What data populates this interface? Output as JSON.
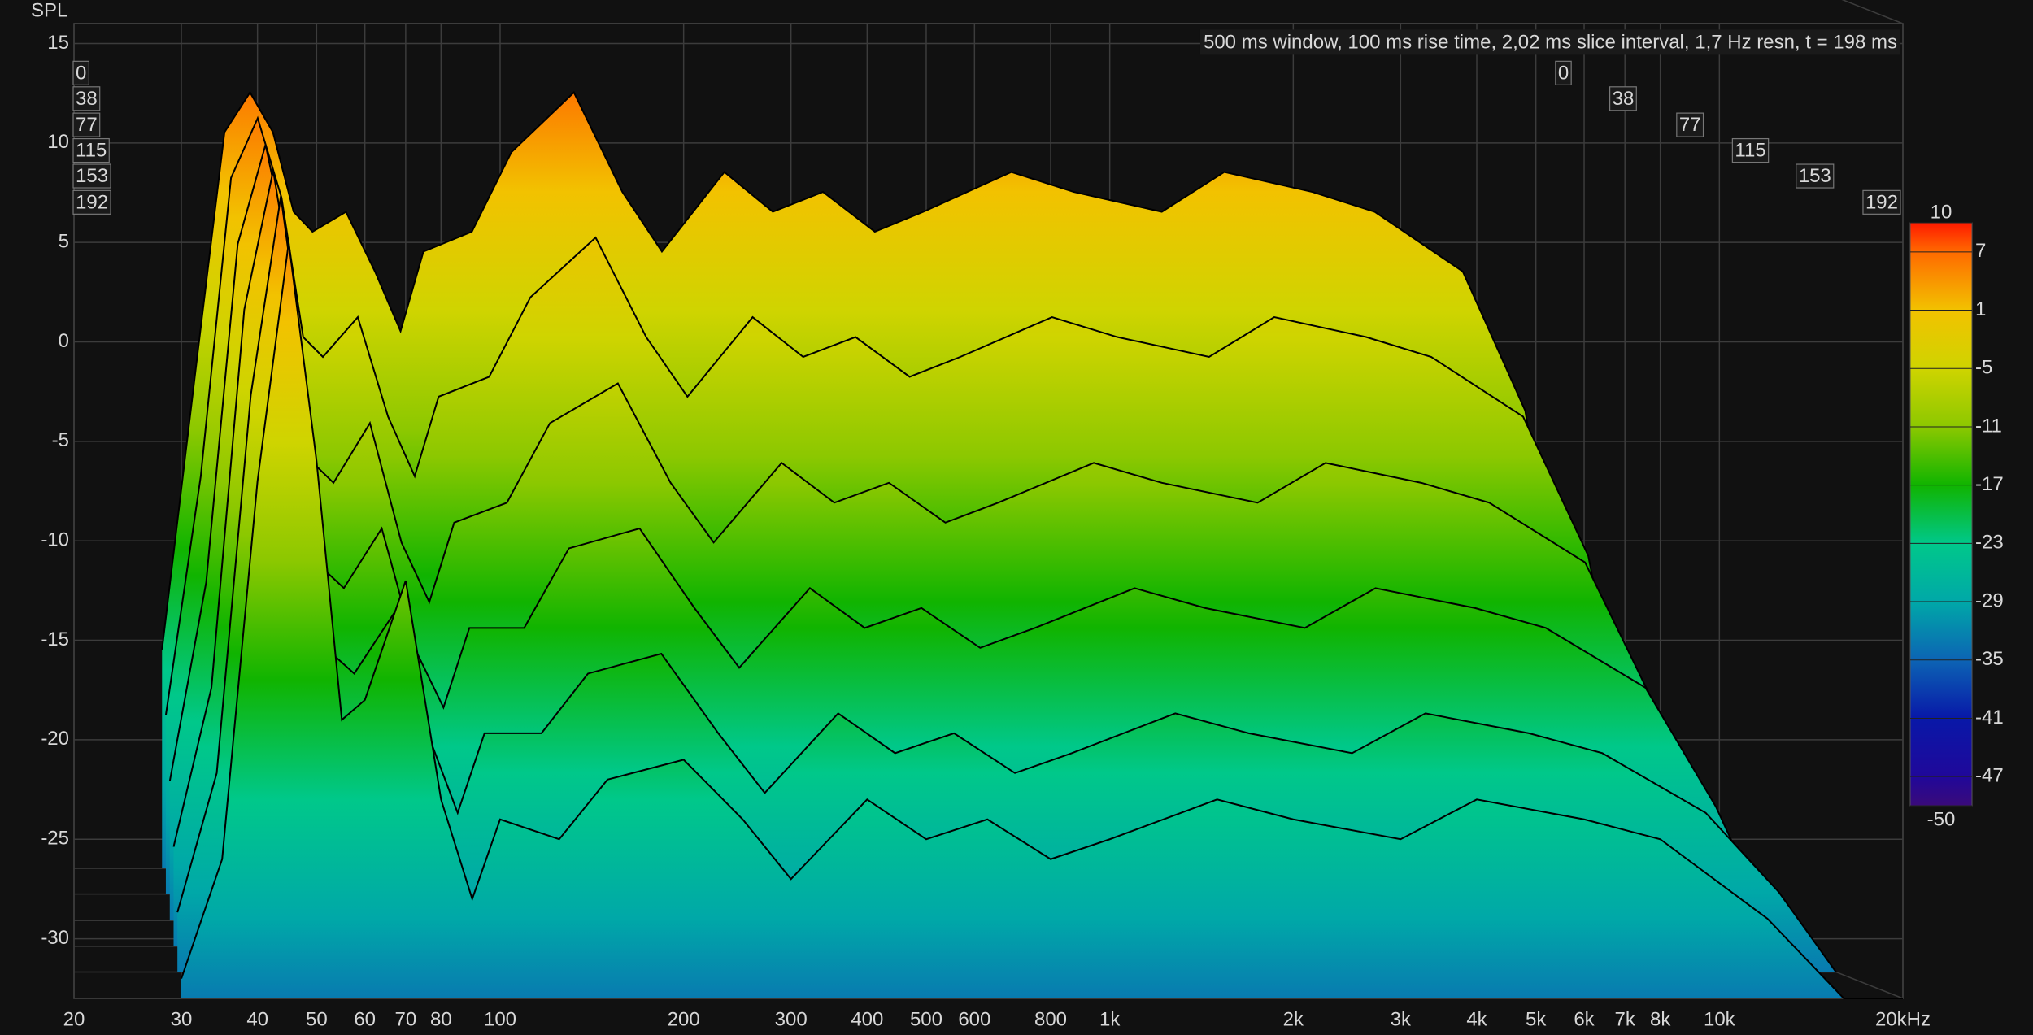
{
  "chart_data": {
    "type": "waterfall",
    "y_label": "SPL",
    "annotation": "500 ms window, 100 ms rise time, 2,02 ms slice interval, 1,7 Hz resn, t = 198 ms",
    "log_x": true,
    "grid": true,
    "xlim": [
      20,
      20000
    ],
    "xticks": [
      20,
      30,
      40,
      50,
      60,
      70,
      80,
      100,
      200,
      300,
      400,
      500,
      600,
      800,
      {
        "value": 1000,
        "label": "1k"
      },
      {
        "value": 2000,
        "label": "2k"
      },
      {
        "value": 3000,
        "label": "3k"
      },
      {
        "value": 4000,
        "label": "4k"
      },
      {
        "value": 5000,
        "label": "5k"
      },
      {
        "value": 6000,
        "label": "6k"
      },
      {
        "value": 7000,
        "label": "7k"
      },
      {
        "value": 8000,
        "label": "8k"
      },
      {
        "value": 10000,
        "label": "10k"
      },
      {
        "value": 20000,
        "label": "20kHz"
      }
    ],
    "ylim": [
      -33,
      16
    ],
    "yticks": [
      15,
      10,
      5,
      0,
      -5,
      -10,
      -15,
      -20,
      -25,
      -30
    ],
    "zlim": [
      0,
      192
    ],
    "zticks": [
      0,
      38,
      77,
      115,
      153,
      192
    ],
    "clim": [
      -50,
      10
    ],
    "cticks": [
      10,
      7,
      1,
      -5,
      -11,
      -17,
      -23,
      -29,
      -35,
      -41,
      -47,
      -50
    ],
    "ccolors": [
      "#ff1a00",
      "#ff6a00",
      "#f2c200",
      "#cfd400",
      "#8cc800",
      "#10b400",
      "#00c88a",
      "#00a8a8",
      "#0c64b4",
      "#0818a8",
      "#20089a",
      "#3a0a7a"
    ],
    "x": [
      30,
      35,
      40,
      45,
      50,
      55,
      60,
      70,
      80,
      90,
      100,
      125,
      150,
      200,
      250,
      300,
      400,
      500,
      630,
      800,
      1000,
      1500,
      2000,
      3000,
      4000,
      6000,
      8000,
      12000,
      16000,
      20000
    ],
    "series": [
      {
        "z": 0,
        "values": [
          -22,
          -8,
          4,
          6,
          4,
          0,
          -1,
          0,
          -3,
          -6,
          -2,
          -1,
          3,
          6,
          1,
          -2,
          2,
          0,
          1,
          -1,
          0,
          2,
          1,
          0,
          2,
          1,
          0,
          -3,
          -10,
          -25
        ]
      },
      {
        "z": 38,
        "values": [
          -24,
          -12,
          3,
          6,
          2,
          -5,
          -6,
          -4,
          -9,
          -12,
          -8,
          -7,
          -3,
          0,
          -5,
          -8,
          -4,
          -6,
          -5,
          -7,
          -6,
          -4,
          -5,
          -6,
          -4,
          -5,
          -6,
          -9,
          -16,
          -29
        ]
      },
      {
        "z": 77,
        "values": [
          -26,
          -16,
          1,
          6,
          0,
          -10,
          -11,
          -8,
          -14,
          -17,
          -13,
          -12,
          -8,
          -6,
          -11,
          -14,
          -10,
          -12,
          -11,
          -13,
          -12,
          -10,
          -11,
          -12,
          -10,
          -11,
          -12,
          -15,
          -22,
          -31
        ]
      },
      {
        "z": 115,
        "values": [
          -28,
          -20,
          -1,
          6,
          -2,
          -14,
          -15,
          -12,
          -18,
          -21,
          -17,
          -17,
          -13,
          -12,
          -16,
          -19,
          -15,
          -17,
          -16,
          -18,
          -17,
          -15,
          -16,
          -17,
          -15,
          -16,
          -17,
          -20,
          -26,
          -32
        ]
      },
      {
        "z": 153,
        "values": [
          -30,
          -23,
          -4,
          6,
          -4,
          -17,
          -18,
          -15,
          -21,
          -25,
          -21,
          -21,
          -18,
          -17,
          -21,
          -24,
          -20,
          -22,
          -21,
          -23,
          -22,
          -20,
          -21,
          -22,
          -20,
          -21,
          -22,
          -25,
          -29,
          -33
        ]
      },
      {
        "z": 192,
        "values": [
          -32,
          -26,
          -7,
          5,
          -6,
          -19,
          -18,
          -12,
          -23,
          -28,
          -24,
          -25,
          -22,
          -21,
          -24,
          -27,
          -23,
          -25,
          -24,
          -26,
          -25,
          -23,
          -24,
          -25,
          -23,
          -24,
          -25,
          -29,
          -33,
          -33
        ]
      }
    ]
  }
}
